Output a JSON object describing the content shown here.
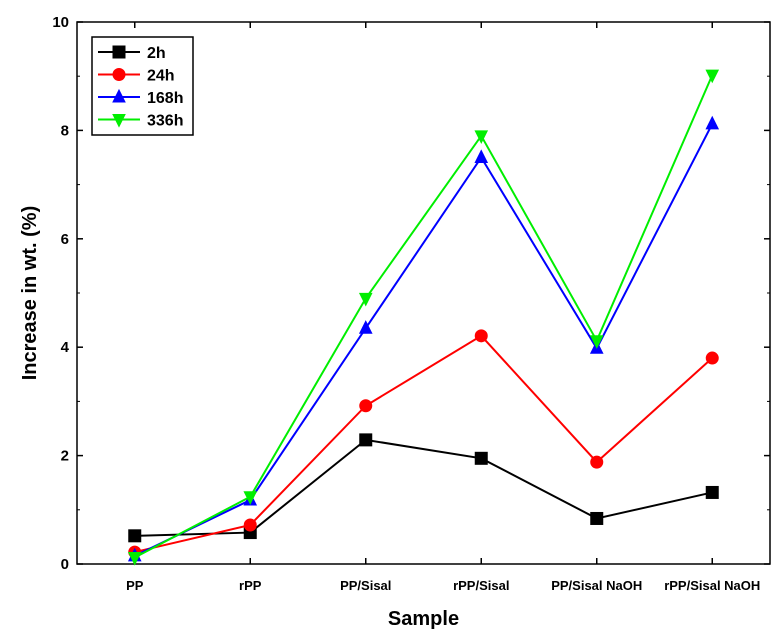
{
  "chart_data": {
    "type": "line",
    "xlabel": "Sample",
    "ylabel": "Increase in wt. (%)",
    "categories": [
      "PP",
      "rPP",
      "PP/Sisal",
      "rPP/Sisal",
      "PP/Sisal NaOH",
      "rPP/Sisal NaOH"
    ],
    "ylim": [
      0,
      10
    ],
    "yticks": [
      0,
      2,
      4,
      6,
      8,
      10
    ],
    "grid": false,
    "legend_position": "top-left",
    "series": [
      {
        "name": "2h",
        "color": "#000000",
        "marker": "square",
        "values": [
          0.52,
          0.58,
          2.29,
          1.95,
          0.84,
          1.32
        ]
      },
      {
        "name": "24h",
        "color": "#ff0000",
        "marker": "circle",
        "values": [
          0.22,
          0.72,
          2.92,
          4.21,
          1.88,
          3.8
        ]
      },
      {
        "name": "168h",
        "color": "#0000ff",
        "marker": "triangle-up",
        "values": [
          0.15,
          1.18,
          4.35,
          7.5,
          3.98,
          8.12
        ]
      },
      {
        "name": "336h",
        "color": "#00ee00",
        "marker": "triangle-down",
        "values": [
          0.12,
          1.24,
          4.9,
          7.9,
          4.12,
          9.02
        ]
      }
    ]
  }
}
